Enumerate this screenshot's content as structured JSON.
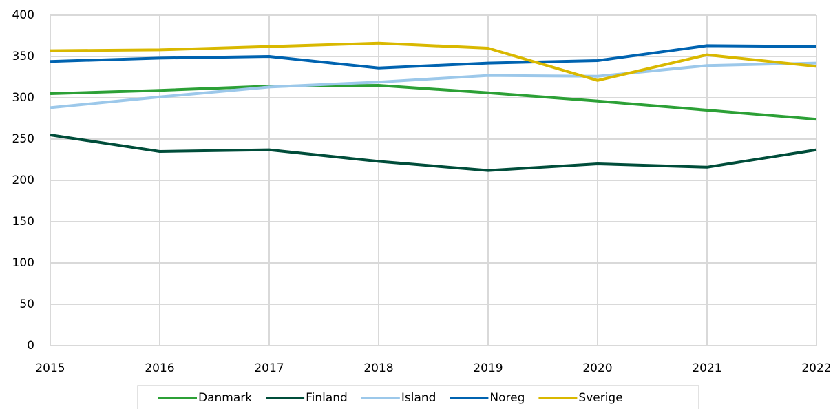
{
  "chart_data": {
    "type": "line",
    "x": [
      2015,
      2016,
      2017,
      2018,
      2019,
      2020,
      2021,
      2022
    ],
    "xlim": [
      2015,
      2022
    ],
    "xticks": [
      2015,
      2016,
      2017,
      2018,
      2019,
      2020,
      2021,
      2022
    ],
    "ylim": [
      0,
      400
    ],
    "yticks": [
      0,
      50,
      100,
      150,
      200,
      250,
      300,
      350,
      400
    ],
    "grid": true,
    "legend": "bottom",
    "series": [
      {
        "name": "Danmark",
        "color": "#2ca036",
        "values": [
          305,
          309,
          314,
          315,
          306,
          296,
          285,
          274
        ]
      },
      {
        "name": "Finland",
        "color": "#004d3a",
        "values": [
          255,
          235,
          237,
          223,
          212,
          220,
          216,
          237
        ]
      },
      {
        "name": "Island",
        "color": "#9cc8ea",
        "values": [
          288,
          301,
          313,
          319,
          327,
          326,
          339,
          342
        ]
      },
      {
        "name": "Noreg",
        "color": "#0063b0",
        "values": [
          344,
          348,
          350,
          336,
          342,
          345,
          363,
          362
        ]
      },
      {
        "name": "Sverige",
        "color": "#d9b800",
        "values": [
          357,
          358,
          362,
          366,
          360,
          321,
          352,
          338
        ]
      }
    ]
  }
}
